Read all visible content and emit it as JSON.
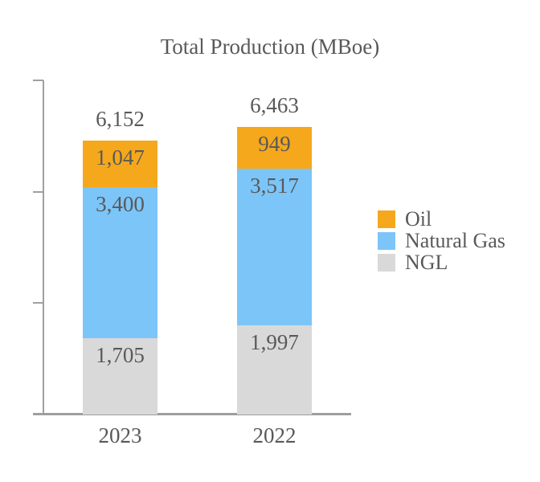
{
  "chart_data": {
    "type": "bar",
    "variant": "stacked-column",
    "title": "Total Production (MBoe)",
    "categories": [
      "2023",
      "2022"
    ],
    "series": [
      {
        "key": "oil",
        "name": "Oil",
        "color": "#F5A81C",
        "values": [
          1047,
          949
        ]
      },
      {
        "key": "gas",
        "name": "Natural Gas",
        "color": "#7CC5F8",
        "values": [
          3400,
          3517
        ]
      },
      {
        "key": "ngl",
        "name": "NGL",
        "color": "#D9D9D9",
        "values": [
          1705,
          1997
        ]
      }
    ],
    "totals": [
      6152,
      6463
    ],
    "labels": {
      "totals": [
        "6,152",
        "6,463"
      ],
      "oil": [
        "1,047",
        "949"
      ],
      "gas": [
        "3,400",
        "3,517"
      ],
      "ngl": [
        "1,705",
        "1,997"
      ]
    },
    "axis": {
      "ymin": 0,
      "ymax": 7500,
      "tick_interval": 2500,
      "tick_values": [
        0,
        2500,
        5000,
        7500
      ],
      "tick_labels_shown": false,
      "grid": false
    },
    "legend": {
      "position": "right",
      "entries": [
        "Oil",
        "Natural Gas",
        "NGL"
      ]
    },
    "colors": {
      "text": "#595959",
      "axis": "#A0A0A0"
    }
  }
}
